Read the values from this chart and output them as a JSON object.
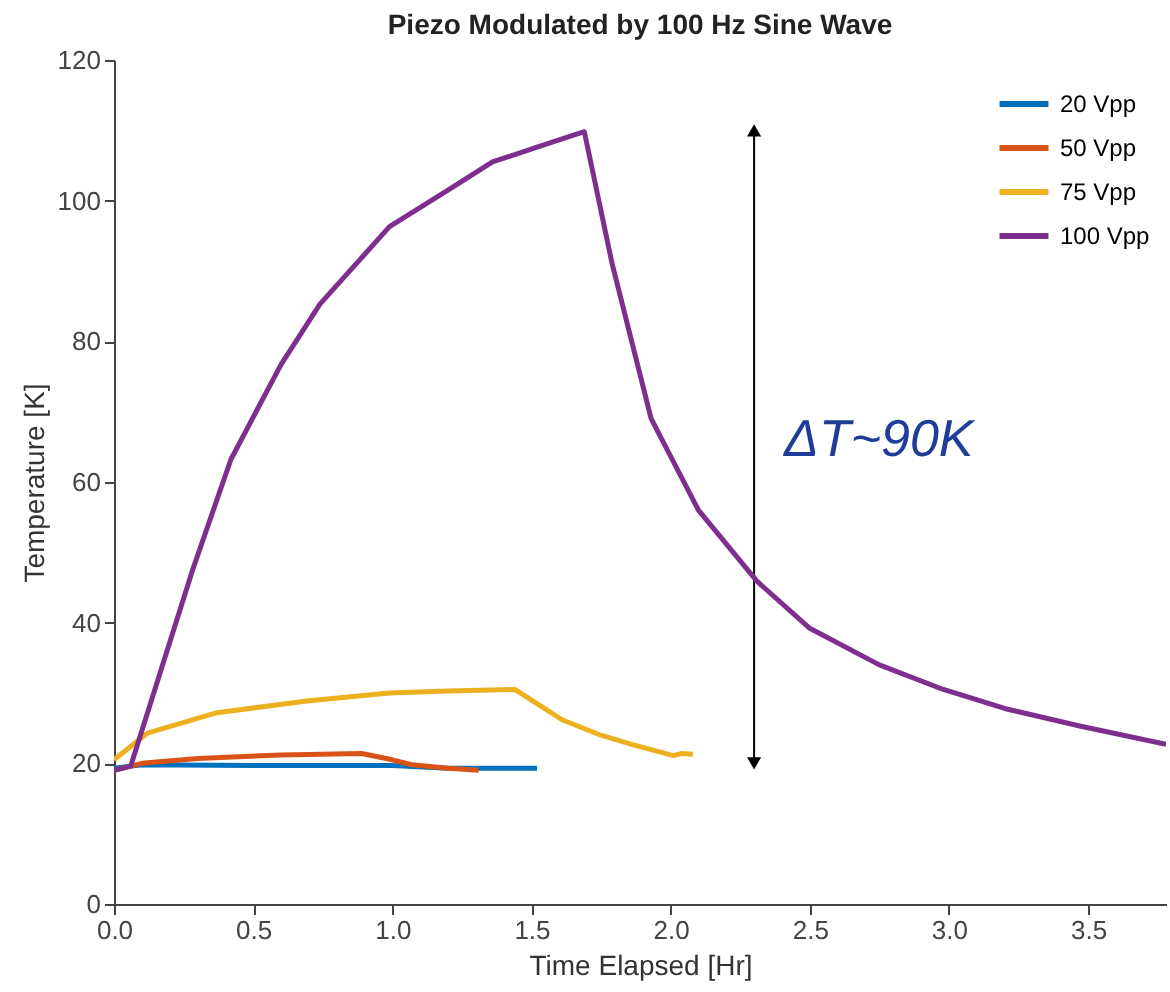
{
  "chart_data": {
    "type": "line",
    "title": "Piezo Modulated by 100 Hz Sine Wave",
    "xlabel": "Time Elapsed [Hr]",
    "ylabel": "Temperature [K]",
    "xlim": [
      0,
      3.78
    ],
    "xticks": [
      {
        "value": 0,
        "label": "0.0"
      },
      0.5,
      {
        "value": 1,
        "label": "1.0"
      },
      1.5,
      {
        "value": 2,
        "label": "2.0"
      },
      2.5,
      {
        "value": 3,
        "label": "3.0"
      },
      3.5
    ],
    "ylim": [
      0,
      120
    ],
    "yticks": [
      0,
      20,
      40,
      60,
      80,
      100,
      120
    ],
    "grid": false,
    "legend": "top right",
    "line_style": "solid",
    "marker": "none",
    "annotations": [
      "ΔT~90K"
    ],
    "series": [
      {
        "name": "20 Vpp",
        "color": "#0072bd",
        "x": [
          0,
          0.1,
          0.5,
          1.0,
          1.2,
          1.52
        ],
        "values": [
          19.3,
          19.8,
          19.7,
          19.7,
          19.3,
          19.3
        ]
      },
      {
        "name": "50 Vpp",
        "color": "#d95319",
        "x": [
          0,
          0.1,
          0.3,
          0.6,
          0.89,
          1.0,
          1.07,
          1.2,
          1.31
        ],
        "values": [
          19.0,
          20.0,
          20.7,
          21.2,
          21.4,
          20.5,
          19.8,
          19.3,
          19.0
        ]
      },
      {
        "name": "75 Vpp",
        "color": "#edb120",
        "x": [
          0,
          0.12,
          0.37,
          0.7,
          0.99,
          1.2,
          1.44,
          1.52,
          1.61,
          1.75,
          1.86,
          2.01,
          2.04,
          2.08
        ],
        "values": [
          20.5,
          24.3,
          27.2,
          28.9,
          30.0,
          30.3,
          30.5,
          28.5,
          26.2,
          24.0,
          22.7,
          21.1,
          21.4,
          21.3
        ]
      },
      {
        "type": "line",
        "color": "#000000",
        "marker": "triangle",
        "x": [
          2.3,
          2.3
        ],
        "values": [
          20,
          110
        ]
      },
      {
        "name": "100 Vpp",
        "color": "#7e2f8e",
        "x": [
          0,
          0.06,
          0.17,
          0.285,
          0.42,
          0.6,
          0.74,
          0.99,
          1.2,
          1.36,
          1.55,
          1.69,
          1.79,
          1.93,
          2.1,
          2.31,
          2.5,
          2.75,
          2.98,
          3.2,
          3.47,
          3.78
        ],
        "values": [
          19.0,
          19.6,
          33.4,
          47.8,
          63.2,
          76.7,
          85.3,
          96.3,
          101.5,
          105.5,
          108.0,
          109.8,
          91.0,
          69.0,
          56.0,
          45.9,
          39.2,
          34.0,
          30.5,
          27.8,
          25.3,
          22.7
        ]
      }
    ]
  }
}
